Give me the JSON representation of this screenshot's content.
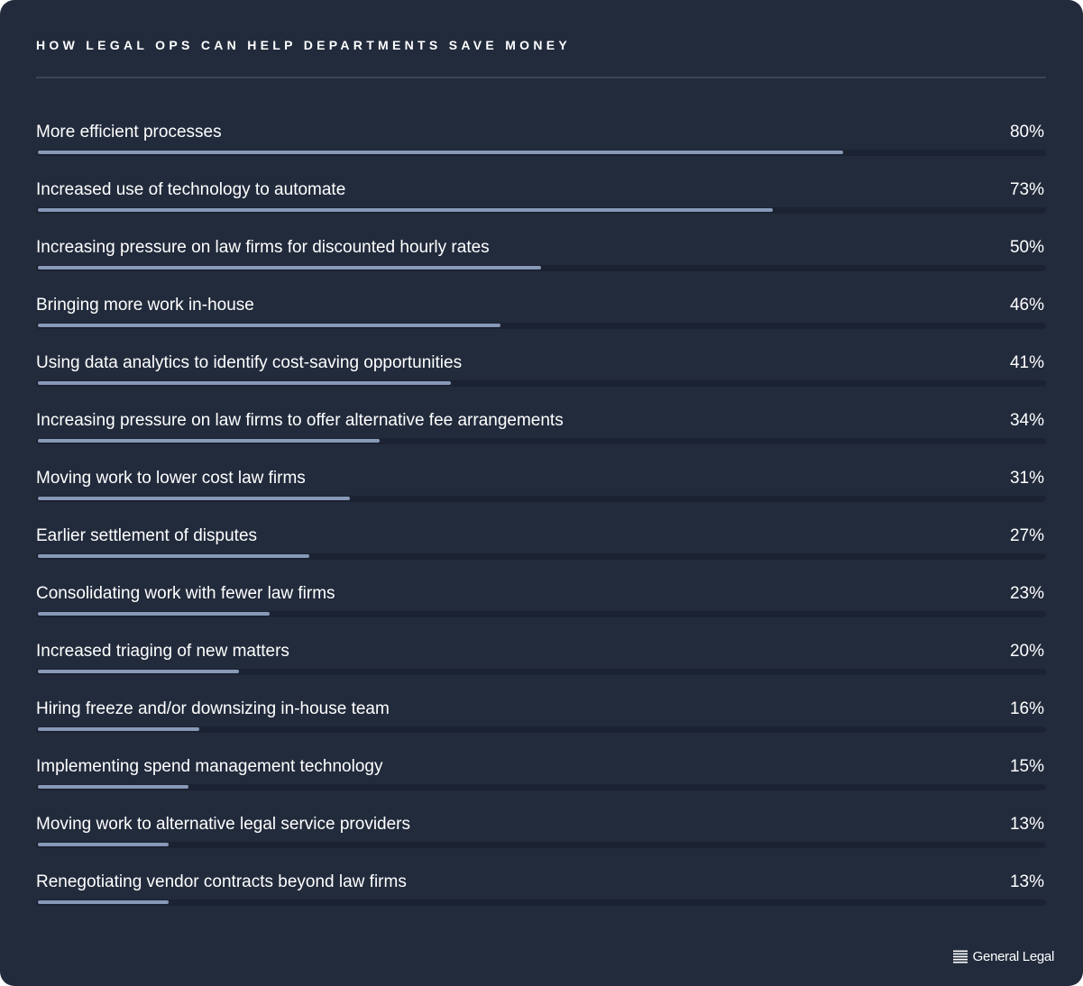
{
  "title": "HOW LEGAL OPS CAN HELP DEPARTMENTS SAVE MONEY",
  "brand": {
    "name": "General Legal",
    "icon": "general-legal-logo-icon"
  },
  "colors": {
    "background": "#222b3c",
    "track": "#1b2231",
    "fill": "#8799b7",
    "text": "#ffffff"
  },
  "chart_data": {
    "type": "bar",
    "orientation": "horizontal",
    "unit": "%",
    "xlim": [
      0,
      100
    ],
    "grid": false,
    "categories": [
      "More efficient processes",
      "Increased use of technology to automate",
      "Increasing pressure on law firms for discounted hourly rates",
      "Bringing more work in-house",
      "Using data analytics to identify cost-saving opportunities",
      "Increasing pressure on law firms to offer alternative fee arrangements",
      "Moving work to lower cost law firms",
      "Earlier settlement of disputes",
      "Consolidating work with fewer law firms",
      "Increased triaging of new matters",
      "Hiring freeze and/or downsizing in-house team",
      "Implementing spend management technology",
      "Moving work to alternative legal service providers",
      "Renegotiating vendor contracts beyond law firms"
    ],
    "values": [
      80,
      73,
      50,
      46,
      41,
      34,
      31,
      27,
      23,
      20,
      16,
      15,
      13,
      13
    ],
    "value_labels": [
      "80%",
      "73%",
      "50%",
      "46%",
      "41%",
      "34%",
      "31%",
      "27%",
      "23%",
      "20%",
      "16%",
      "15%",
      "13%",
      "13%"
    ]
  }
}
